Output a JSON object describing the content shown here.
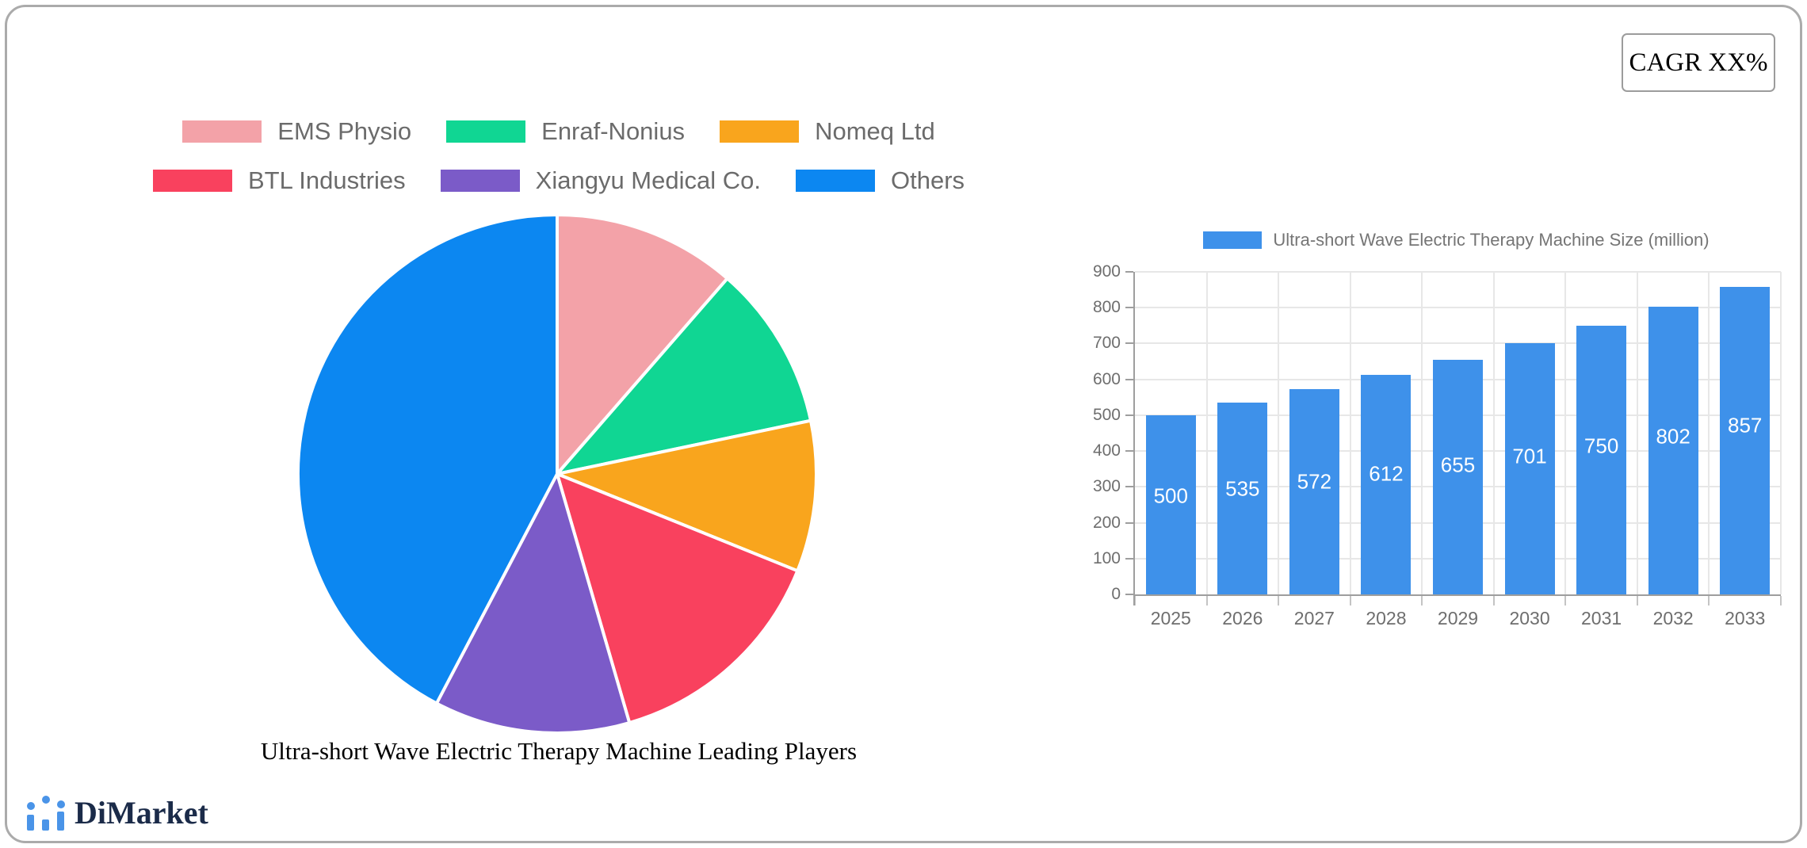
{
  "cagr": {
    "label": "CAGR XX%"
  },
  "logo": {
    "text": "DiMarket",
    "icon": "bar-chart-trend-icon",
    "icon_color": "#4a94e8",
    "text_color": "#1b2b49"
  },
  "chart_data": [
    {
      "type": "pie",
      "title": "Ultra-short Wave Electric Therapy Machine Leading Players",
      "labels": [
        "EMS Physio",
        "Enraf-Nonius",
        "Nomeq Ltd",
        "BTL Industries",
        "Xiangyu Medical Co.",
        "Others"
      ],
      "values": [
        11.4,
        10.3,
        9.4,
        14.4,
        12.2,
        42.3
      ],
      "units": "percent share (estimated from slice angles)",
      "colors": [
        "#f3a2a8",
        "#10d693",
        "#f9a51d",
        "#f9415e",
        "#7b5bc8",
        "#0c87f1"
      ],
      "slice_border_color": "#ffffff",
      "start_angle_deg": -90,
      "direction": "clockwise",
      "legend_position": "top",
      "legend_text_color": "#6b6b6b"
    },
    {
      "type": "bar",
      "legend_label": "Ultra-short Wave Electric Therapy Machine Size (million)",
      "categories": [
        "2025",
        "2026",
        "2027",
        "2028",
        "2029",
        "2030",
        "2031",
        "2032",
        "2033"
      ],
      "values": [
        500,
        535,
        572,
        612,
        655,
        701,
        750,
        802,
        857
      ],
      "ylim": [
        0,
        900
      ],
      "ytick_step": 100,
      "bar_color": "#3e91ea",
      "value_label_color": "#ffffff",
      "axis_text_color": "#6e6e6e",
      "grid": true,
      "legend_position": "top"
    }
  ]
}
